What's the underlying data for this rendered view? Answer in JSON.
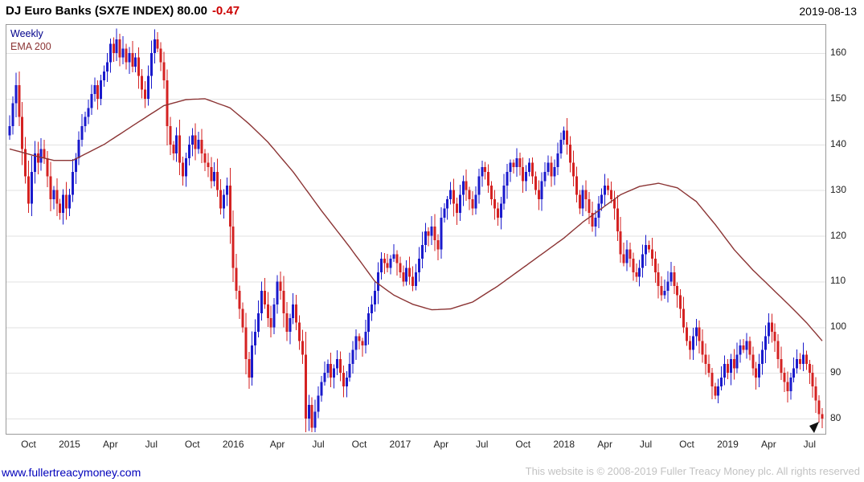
{
  "header": {
    "title": "DJ Euro Banks (SX7E INDEX) 80.00",
    "change": "-0.47",
    "date": "2019-08-13"
  },
  "legend": {
    "series": "Weekly",
    "ema": "EMA 200"
  },
  "footer": {
    "link": "www.fullertreacymoney.com",
    "copyright": "This website is © 2008-2019 Fuller Treacy Money plc. All rights reserved"
  },
  "colors": {
    "up_candle": "#1a1acc",
    "down_candle": "#d42222",
    "ema_line": "#8b3434",
    "change_text": "#cc0000",
    "legend_series_text": "#00008b",
    "grid": "#e2e2e2",
    "border": "#9a9a9a",
    "link_text": "#0000bb",
    "copyright_text": "#c2c2c2",
    "axis_text": "#222222",
    "marker": "#111111"
  },
  "chart_data": {
    "type": "candlestick",
    "interval": "weekly",
    "title": "DJ Euro Banks (SX7E INDEX)",
    "last_price": 80.0,
    "change": -0.47,
    "as_of": "2019-08-13",
    "overlay": "EMA 200",
    "grid": "horizontal-only",
    "y_axis": {
      "position": "right",
      "min": 76.5,
      "max": 166.3,
      "ticks": [
        160,
        150,
        140,
        130,
        120,
        110,
        100,
        90,
        80
      ]
    },
    "x_axis": {
      "start": "2014-09",
      "end": "2019-08",
      "labels": [
        {
          "text": "Oct",
          "week": 6
        },
        {
          "text": "2015",
          "week": 19
        },
        {
          "text": "Apr",
          "week": 32
        },
        {
          "text": "Jul",
          "week": 45
        },
        {
          "text": "Oct",
          "week": 58
        },
        {
          "text": "2016",
          "week": 71
        },
        {
          "text": "Apr",
          "week": 85
        },
        {
          "text": "Jul",
          "week": 98
        },
        {
          "text": "Oct",
          "week": 111
        },
        {
          "text": "2017",
          "week": 124
        },
        {
          "text": "Apr",
          "week": 137
        },
        {
          "text": "Jul",
          "week": 150
        },
        {
          "text": "Oct",
          "week": 163
        },
        {
          "text": "2018",
          "week": 176
        },
        {
          "text": "Apr",
          "week": 189
        },
        {
          "text": "Jul",
          "week": 202
        },
        {
          "text": "Oct",
          "week": 215
        },
        {
          "text": "2019",
          "week": 228
        },
        {
          "text": "Apr",
          "week": 241
        },
        {
          "text": "Jul",
          "week": 254
        }
      ]
    },
    "weekly_closes": [
      144,
      149,
      153,
      146,
      139,
      133,
      127,
      134,
      138,
      136,
      139,
      137,
      133,
      128,
      130,
      127,
      125,
      129,
      126,
      129,
      134,
      137,
      141,
      144,
      146,
      148,
      151,
      153,
      150,
      154,
      156,
      158,
      162,
      160,
      163,
      159,
      161,
      158,
      160,
      157,
      159,
      155,
      152,
      150,
      155,
      160,
      163,
      161,
      158,
      154,
      144,
      140,
      138,
      142,
      136,
      133,
      137,
      140,
      142,
      139,
      141,
      138,
      136,
      135,
      132,
      134,
      130,
      126,
      129,
      131,
      122,
      113,
      108,
      104,
      100,
      93,
      89,
      96,
      99,
      103,
      108,
      105,
      102,
      100,
      105,
      110,
      108,
      103,
      99,
      102,
      105,
      101,
      97,
      94,
      80,
      83,
      78,
      81.5,
      85,
      88,
      90,
      92,
      89,
      91,
      93,
      90,
      87,
      89,
      92,
      95,
      98,
      97,
      96,
      99,
      103,
      105,
      108,
      112,
      115,
      114,
      113,
      115,
      116,
      114,
      112,
      110,
      113,
      111,
      109,
      112,
      115,
      118,
      121,
      120,
      122,
      119,
      117,
      124,
      126,
      128,
      130,
      127,
      125,
      129,
      132,
      130,
      128,
      126,
      129,
      133,
      135,
      134,
      131,
      128,
      126,
      124,
      127,
      131,
      134,
      136,
      135,
      137,
      135,
      132,
      134,
      136,
      133,
      130,
      128,
      132,
      134,
      136,
      133,
      135,
      138,
      141,
      143,
      140,
      136,
      133,
      129,
      126,
      130,
      128,
      125,
      122,
      124,
      127,
      129,
      131,
      130,
      128,
      126,
      121,
      116,
      114,
      117,
      115,
      112,
      111,
      113,
      116,
      118,
      117,
      115,
      112,
      109,
      107,
      108,
      110,
      112,
      109,
      107,
      104,
      100,
      97,
      95,
      98,
      100,
      97,
      94,
      92,
      90,
      87,
      85,
      87,
      89,
      92,
      90,
      93,
      91,
      94,
      96,
      95,
      97,
      94,
      91,
      89,
      92,
      95,
      98,
      101,
      99,
      97,
      93,
      90,
      88,
      86,
      89,
      91,
      93,
      92,
      94,
      92,
      90,
      87,
      84,
      81,
      80
    ],
    "ema200_anchors": [
      [
        0,
        139
      ],
      [
        8,
        137.5
      ],
      [
        14,
        136.5
      ],
      [
        20,
        136.5
      ],
      [
        30,
        140
      ],
      [
        40,
        144.5
      ],
      [
        49,
        148.5
      ],
      [
        56,
        149.8
      ],
      [
        62,
        150
      ],
      [
        70,
        148
      ],
      [
        76,
        144.5
      ],
      [
        82,
        140.5
      ],
      [
        90,
        134
      ],
      [
        99,
        125.5
      ],
      [
        108,
        117.5
      ],
      [
        116,
        110
      ],
      [
        122,
        107
      ],
      [
        128,
        105
      ],
      [
        134,
        103.8
      ],
      [
        140,
        104
      ],
      [
        147,
        105.5
      ],
      [
        155,
        109
      ],
      [
        163,
        113
      ],
      [
        171,
        117
      ],
      [
        176,
        119.5
      ],
      [
        182,
        123
      ],
      [
        188,
        126
      ],
      [
        194,
        129
      ],
      [
        200,
        130.8
      ],
      [
        206,
        131.5
      ],
      [
        212,
        130.5
      ],
      [
        218,
        127.5
      ],
      [
        224,
        122.5
      ],
      [
        230,
        117
      ],
      [
        236,
        112.5
      ],
      [
        242,
        108.5
      ],
      [
        248,
        104.5
      ],
      [
        253,
        101
      ],
      [
        258,
        97
      ]
    ]
  }
}
